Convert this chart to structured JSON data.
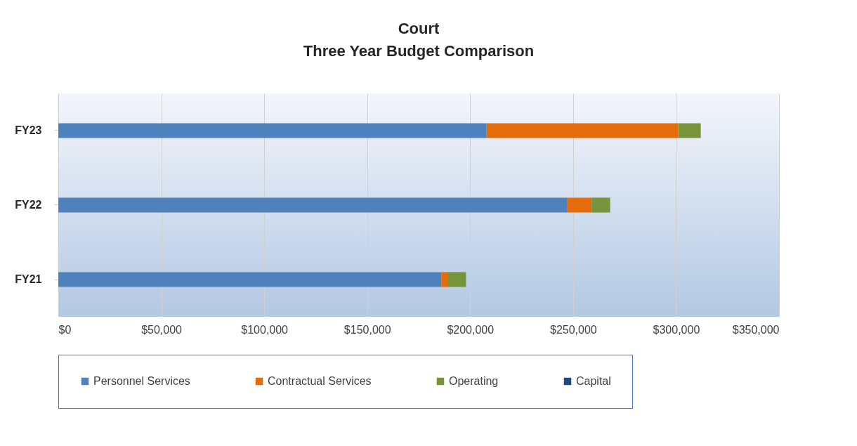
{
  "chart_data": {
    "type": "bar",
    "orientation": "horizontal",
    "stacked": true,
    "title": "Court",
    "subtitle": "Three Year Budget Comparison",
    "categories": [
      "FY23",
      "FY22",
      "FY21"
    ],
    "series": [
      {
        "name": "Personnel Services",
        "color": "#4f81bd",
        "values": [
          208000,
          247000,
          186000
        ]
      },
      {
        "name": "Contractual Services",
        "color": "#e46c0a",
        "values": [
          93000,
          12000,
          3000
        ]
      },
      {
        "name": "Operating",
        "color": "#77933c",
        "values": [
          11000,
          9000,
          9000
        ]
      },
      {
        "name": "Capital",
        "color": "#1f497d",
        "values": [
          0,
          0,
          0
        ]
      }
    ],
    "xlim": [
      0,
      350000
    ],
    "xticks": [
      {
        "value": 0,
        "label": "$0"
      },
      {
        "value": 50000,
        "label": "$50,000"
      },
      {
        "value": 100000,
        "label": "$100,000"
      },
      {
        "value": 150000,
        "label": "$150,000"
      },
      {
        "value": 200000,
        "label": "$200,000"
      },
      {
        "value": 250000,
        "label": "$250,000"
      },
      {
        "value": 300000,
        "label": "$300,000"
      },
      {
        "value": 350000,
        "label": "$350,000"
      }
    ],
    "grid": "x",
    "legend": "bottom"
  }
}
